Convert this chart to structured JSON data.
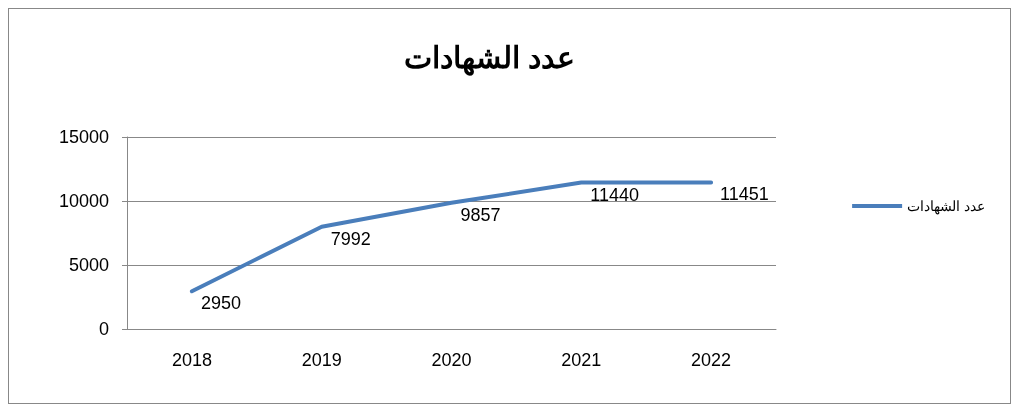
{
  "chart_data": {
    "type": "line",
    "title": "عدد الشهادات",
    "categories": [
      "2018",
      "2019",
      "2020",
      "2021",
      "2022"
    ],
    "series": [
      {
        "name": "عدد الشهادات",
        "color": "#4a7ebb",
        "values": [
          2950,
          7992,
          9857,
          11440,
          11451
        ]
      }
    ],
    "ylim": [
      0,
      15000
    ],
    "yticks": [
      0,
      5000,
      10000,
      15000
    ],
    "grid": "y",
    "legend": "right",
    "data_labels": true,
    "marker": "none",
    "line_style": "solid"
  }
}
